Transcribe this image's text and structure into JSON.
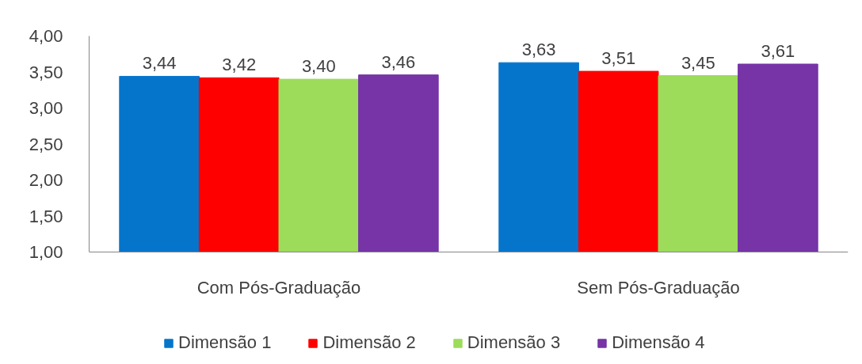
{
  "chart_data": {
    "type": "bar",
    "categories": [
      "Com Pós-Graduação",
      "Sem Pós-Graduação"
    ],
    "series": [
      {
        "name": "Dimensão 1",
        "color": "#0575cc",
        "values": [
          3.44,
          3.63
        ],
        "value_labels": [
          "3,44",
          "3,63"
        ]
      },
      {
        "name": "Dimensão 2",
        "color": "#fe0000",
        "values": [
          3.42,
          3.51
        ],
        "value_labels": [
          "3,42",
          "3,51"
        ]
      },
      {
        "name": "Dimensão 3",
        "color": "#9cdc5a",
        "values": [
          3.4,
          3.45
        ],
        "value_labels": [
          "3,40",
          "3,45"
        ]
      },
      {
        "name": "Dimensão 4",
        "color": "#7634a6",
        "values": [
          3.46,
          3.61
        ],
        "value_labels": [
          "3,46",
          "3,61"
        ]
      }
    ],
    "ylim": [
      1,
      4
    ],
    "yticks": [
      {
        "value": 1,
        "label": "1,00"
      },
      {
        "value": 1.5,
        "label": "1,50"
      },
      {
        "value": 2,
        "label": "2,00"
      },
      {
        "value": 2.5,
        "label": "2,50"
      },
      {
        "value": 3,
        "label": "3,00"
      },
      {
        "value": 3.5,
        "label": "3,50"
      },
      {
        "value": 4,
        "label": "4,00"
      }
    ],
    "legend": "bottom"
  }
}
